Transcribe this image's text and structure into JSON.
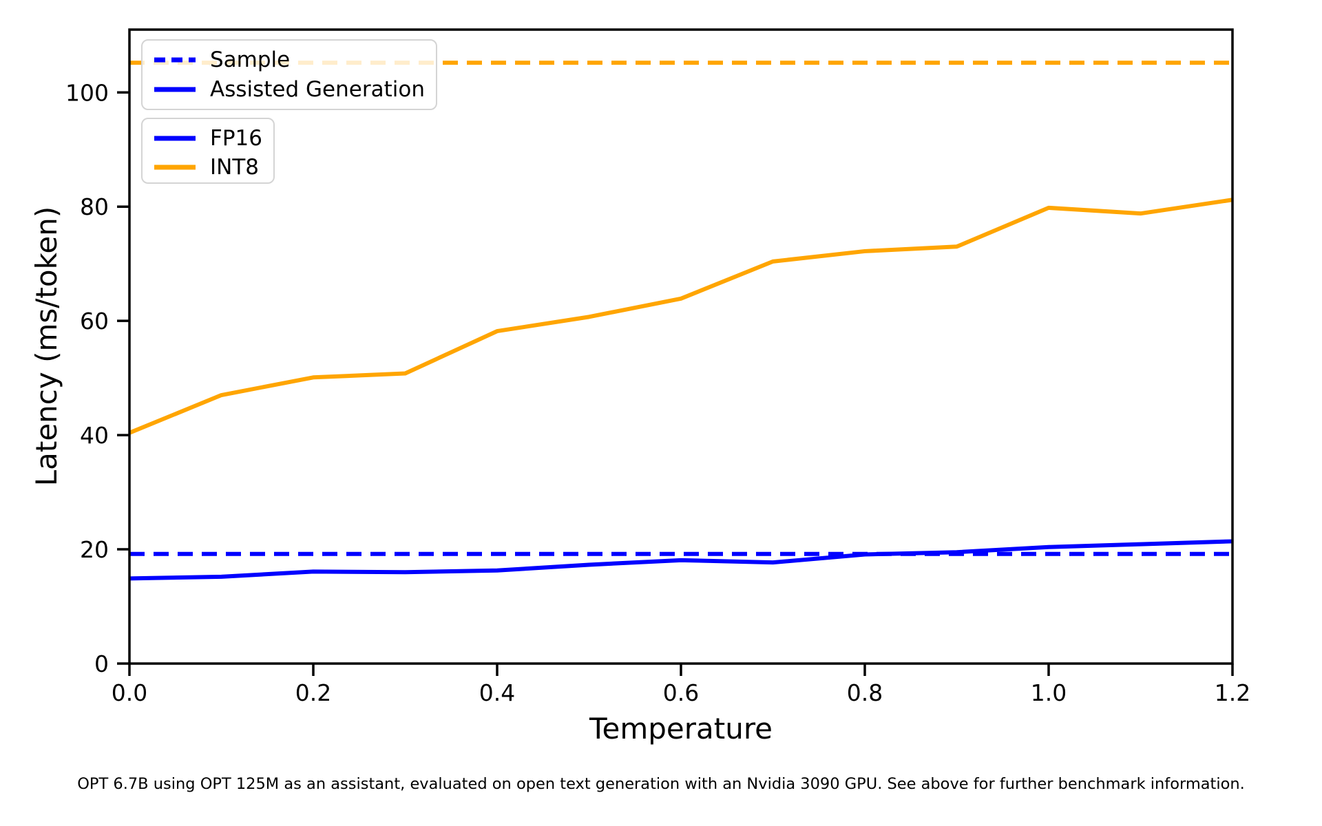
{
  "chart_data": {
    "type": "line",
    "xlabel": "Temperature",
    "ylabel": "Latency (ms/token)",
    "xlim": [
      0.0,
      1.2
    ],
    "ylim": [
      0,
      111
    ],
    "grid": false,
    "legend_position": "upper left",
    "x_ticks": [
      0.0,
      0.2,
      0.4,
      0.6,
      0.8,
      1.0,
      1.2
    ],
    "x_tick_labels": [
      "0.0",
      "0.2",
      "0.4",
      "0.6",
      "0.8",
      "1.0",
      "1.2"
    ],
    "y_ticks": [
      0,
      20,
      40,
      60,
      80,
      100
    ],
    "y_tick_labels": [
      "0",
      "20",
      "40",
      "60",
      "80",
      "100"
    ],
    "x": [
      0.0,
      0.1,
      0.2,
      0.3,
      0.4,
      0.5,
      0.6,
      0.7,
      0.8,
      0.9,
      1.0,
      1.1,
      1.2
    ],
    "series": [
      {
        "name": "INT8 Assisted Generation",
        "color": "#ffa500",
        "style": "solid",
        "values": [
          40.4,
          47.0,
          50.1,
          50.8,
          58.2,
          60.7,
          63.9,
          70.4,
          72.2,
          73.0,
          79.8,
          78.8,
          81.2
        ]
      },
      {
        "name": "FP16 Assisted Generation",
        "color": "#0000ff",
        "style": "solid",
        "values": [
          14.9,
          15.2,
          16.1,
          16.0,
          16.3,
          17.3,
          18.1,
          17.7,
          19.1,
          19.5,
          20.4,
          20.9,
          21.4
        ]
      }
    ],
    "reference_lines": [
      {
        "name": "INT8 Sample",
        "color": "#ffa500",
        "style": "dashed",
        "value": 105.2
      },
      {
        "name": "FP16 Sample",
        "color": "#0000ff",
        "style": "dashed",
        "value": 19.2
      }
    ]
  },
  "legends": [
    {
      "items": [
        {
          "label": "Sample",
          "color": "#0000ff",
          "style": "dashed"
        },
        {
          "label": "Assisted Generation",
          "color": "#0000ff",
          "style": "solid"
        }
      ]
    },
    {
      "items": [
        {
          "label": "FP16",
          "color": "#0000ff",
          "style": "solid"
        },
        {
          "label": "INT8",
          "color": "#ffa500",
          "style": "solid"
        }
      ]
    }
  ],
  "caption": "OPT 6.7B using OPT 125M as an assistant, evaluated on open text generation with an Nvidia 3090 GPU. See above for further benchmark information."
}
